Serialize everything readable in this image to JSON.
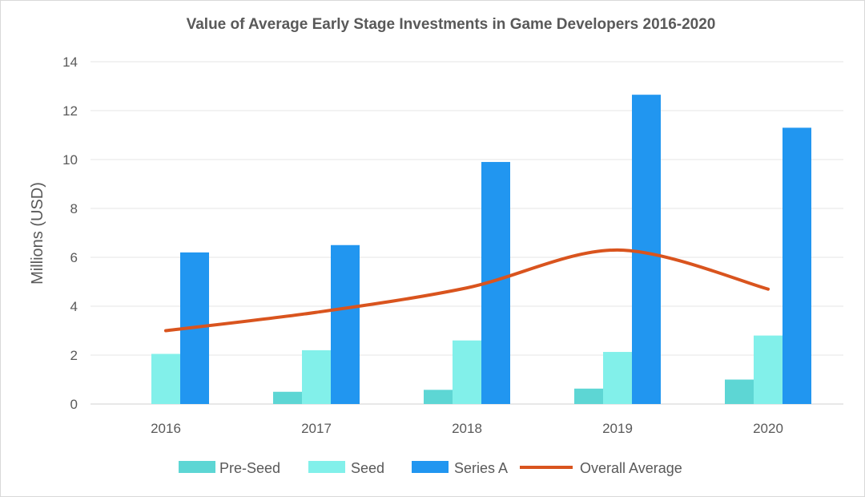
{
  "chart_data": {
    "type": "bar",
    "title": "Value of Average Early Stage Investments in Game Developers 2016-2020",
    "xlabel": "",
    "ylabel": "Millions (USD)",
    "ylim": [
      0,
      14
    ],
    "yticks": [
      0,
      2,
      4,
      6,
      8,
      10,
      12,
      14
    ],
    "grid": true,
    "legend": "bottom",
    "categories": [
      "2016",
      "2017",
      "2018",
      "2019",
      "2020"
    ],
    "series": [
      {
        "name": "Pre-Seed",
        "type": "bar",
        "color": "#5dd6d4",
        "values": [
          0,
          0.5,
          0.58,
          0.63,
          1.0
        ]
      },
      {
        "name": "Seed",
        "type": "bar",
        "color": "#82f0ea",
        "values": [
          2.05,
          2.2,
          2.6,
          2.13,
          2.8
        ]
      },
      {
        "name": "Series A",
        "type": "bar",
        "color": "#2196f0",
        "values": [
          6.2,
          6.5,
          9.9,
          12.65,
          11.3
        ]
      },
      {
        "name": "Overall Average",
        "type": "line",
        "smooth": true,
        "color": "#d9541e",
        "values": [
          3.0,
          3.75,
          4.75,
          6.3,
          4.7
        ]
      }
    ]
  }
}
